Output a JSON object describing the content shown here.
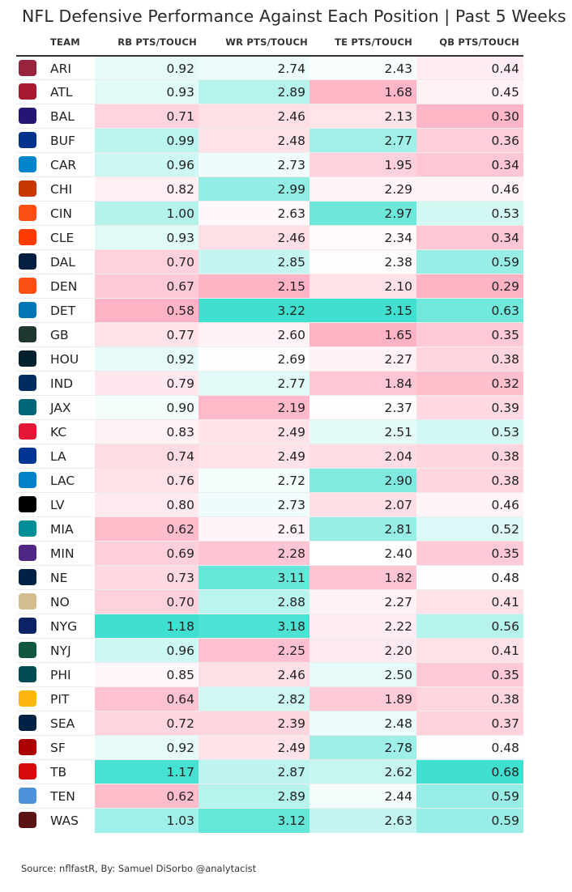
{
  "title": "NFL Defensive Performance Against Each Position | Past 5 Weeks",
  "source": "Source: nflfastR, By: Samuel DiSorbo @analytacist",
  "headers": {
    "team": "TEAM",
    "rb": "RB PTS/TOUCH",
    "wr": "WR PTS/TOUCH",
    "te": "TE PTS/TOUCH",
    "qb": "QB PTS/TOUCH"
  },
  "colors": {
    "low": "#ffb3c4",
    "mid": "#ffffff",
    "high": "#40e0d0"
  },
  "chart_data": {
    "type": "table",
    "title": "NFL Defensive Performance Against Each Position | Past 5 Weeks",
    "columns": [
      "TEAM",
      "RB PTS/TOUCH",
      "WR PTS/TOUCH",
      "TE PTS/TOUCH",
      "QB PTS/TOUCH"
    ],
    "rows": [
      {
        "team": "ARI",
        "logo_color": "#97233F",
        "rb": "0.92",
        "wr": "2.74",
        "te": "2.43",
        "qb": "0.44"
      },
      {
        "team": "ATL",
        "logo_color": "#A71930",
        "rb": "0.93",
        "wr": "2.89",
        "te": "1.68",
        "qb": "0.45"
      },
      {
        "team": "BAL",
        "logo_color": "#241773",
        "rb": "0.71",
        "wr": "2.46",
        "te": "2.13",
        "qb": "0.30"
      },
      {
        "team": "BUF",
        "logo_color": "#00338D",
        "rb": "0.99",
        "wr": "2.48",
        "te": "2.77",
        "qb": "0.36"
      },
      {
        "team": "CAR",
        "logo_color": "#0085CA",
        "rb": "0.96",
        "wr": "2.73",
        "te": "1.95",
        "qb": "0.34"
      },
      {
        "team": "CHI",
        "logo_color": "#C83803",
        "rb": "0.82",
        "wr": "2.99",
        "te": "2.29",
        "qb": "0.46"
      },
      {
        "team": "CIN",
        "logo_color": "#FB4F14",
        "rb": "1.00",
        "wr": "2.63",
        "te": "2.97",
        "qb": "0.53"
      },
      {
        "team": "CLE",
        "logo_color": "#FF3C00",
        "rb": "0.93",
        "wr": "2.46",
        "te": "2.34",
        "qb": "0.34"
      },
      {
        "team": "DAL",
        "logo_color": "#041E42",
        "rb": "0.70",
        "wr": "2.85",
        "te": "2.38",
        "qb": "0.59"
      },
      {
        "team": "DEN",
        "logo_color": "#FB4F14",
        "rb": "0.67",
        "wr": "2.15",
        "te": "2.10",
        "qb": "0.29"
      },
      {
        "team": "DET",
        "logo_color": "#0076B6",
        "rb": "0.58",
        "wr": "3.22",
        "te": "3.15",
        "qb": "0.63"
      },
      {
        "team": "GB",
        "logo_color": "#203731",
        "rb": "0.77",
        "wr": "2.60",
        "te": "1.65",
        "qb": "0.35"
      },
      {
        "team": "HOU",
        "logo_color": "#03202F",
        "rb": "0.92",
        "wr": "2.69",
        "te": "2.27",
        "qb": "0.38"
      },
      {
        "team": "IND",
        "logo_color": "#002C5F",
        "rb": "0.79",
        "wr": "2.77",
        "te": "1.84",
        "qb": "0.32"
      },
      {
        "team": "JAX",
        "logo_color": "#006778",
        "rb": "0.90",
        "wr": "2.19",
        "te": "2.37",
        "qb": "0.39"
      },
      {
        "team": "KC",
        "logo_color": "#E31837",
        "rb": "0.83",
        "wr": "2.49",
        "te": "2.51",
        "qb": "0.53"
      },
      {
        "team": "LA",
        "logo_color": "#003594",
        "rb": "0.74",
        "wr": "2.49",
        "te": "2.04",
        "qb": "0.38"
      },
      {
        "team": "LAC",
        "logo_color": "#0080C6",
        "rb": "0.76",
        "wr": "2.72",
        "te": "2.90",
        "qb": "0.38"
      },
      {
        "team": "LV",
        "logo_color": "#000000",
        "rb": "0.80",
        "wr": "2.73",
        "te": "2.07",
        "qb": "0.46"
      },
      {
        "team": "MIA",
        "logo_color": "#008E97",
        "rb": "0.62",
        "wr": "2.61",
        "te": "2.81",
        "qb": "0.52"
      },
      {
        "team": "MIN",
        "logo_color": "#4F2683",
        "rb": "0.69",
        "wr": "2.28",
        "te": "2.40",
        "qb": "0.35"
      },
      {
        "team": "NE",
        "logo_color": "#002244",
        "rb": "0.73",
        "wr": "3.11",
        "te": "1.82",
        "qb": "0.48"
      },
      {
        "team": "NO",
        "logo_color": "#D3BC8D",
        "rb": "0.70",
        "wr": "2.88",
        "te": "2.27",
        "qb": "0.41"
      },
      {
        "team": "NYG",
        "logo_color": "#0B2265",
        "rb": "1.18",
        "wr": "3.18",
        "te": "2.22",
        "qb": "0.56"
      },
      {
        "team": "NYJ",
        "logo_color": "#125740",
        "rb": "0.96",
        "wr": "2.25",
        "te": "2.20",
        "qb": "0.41"
      },
      {
        "team": "PHI",
        "logo_color": "#004C54",
        "rb": "0.85",
        "wr": "2.46",
        "te": "2.50",
        "qb": "0.35"
      },
      {
        "team": "PIT",
        "logo_color": "#FFB612",
        "rb": "0.64",
        "wr": "2.82",
        "te": "1.89",
        "qb": "0.38"
      },
      {
        "team": "SEA",
        "logo_color": "#002244",
        "rb": "0.72",
        "wr": "2.39",
        "te": "2.48",
        "qb": "0.37"
      },
      {
        "team": "SF",
        "logo_color": "#AA0000",
        "rb": "0.92",
        "wr": "2.49",
        "te": "2.78",
        "qb": "0.48"
      },
      {
        "team": "TB",
        "logo_color": "#D50A0A",
        "rb": "1.17",
        "wr": "2.87",
        "te": "2.62",
        "qb": "0.68"
      },
      {
        "team": "TEN",
        "logo_color": "#4B92DB",
        "rb": "0.62",
        "wr": "2.89",
        "te": "2.44",
        "qb": "0.59"
      },
      {
        "team": "WAS",
        "logo_color": "#5A1414",
        "rb": "1.03",
        "wr": "3.12",
        "te": "2.63",
        "qb": "0.59"
      }
    ]
  }
}
